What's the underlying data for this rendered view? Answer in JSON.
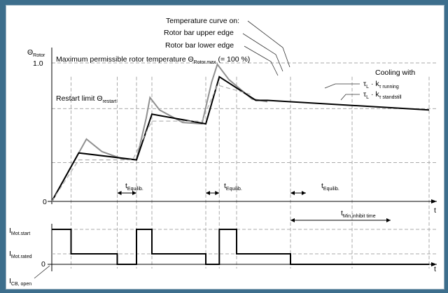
{
  "chart_data": [
    {
      "type": "line",
      "y_axis": {
        "label": "Θ",
        "label_sub": "Rotor",
        "ticks": [
          "1.0",
          "0"
        ],
        "tick_values": [
          1.0,
          0
        ]
      },
      "x_axis": {
        "label": "t"
      },
      "annotations": {
        "curve_title": "Temperature curve on:",
        "upper_edge": "Rotor bar upper edge",
        "lower_edge": "Rotor bar lower edge",
        "max_temp": "Maximum permissible rotor temperature Θ",
        "max_temp_sub": "Rotor.max",
        "max_temp_suffix": " (= 100 %)",
        "restart_limit": "Restart limit Θ",
        "restart_limit_sub": "restart",
        "cooling_with": "Cooling with",
        "tau_running": "τ",
        "tau_running_sub": "L",
        "k_running": " · k",
        "k_running_sub": "τ running",
        "tau_standstill": "τ",
        "tau_standstill_sub": "L",
        "k_standstill": " · k",
        "k_standstill_sub": "τ standstill",
        "t_equilib": "t",
        "t_equilib_sub": "Equilib."
      },
      "reference_levels": {
        "max": 1.0,
        "restart": 0.67
      },
      "series": [
        {
          "name": "Rotor bar upper edge",
          "color": "#909090",
          "points": [
            [
              0,
              0
            ],
            [
              0.09,
              0.45
            ],
            [
              0.13,
              0.36
            ],
            [
              0.18,
              0.31
            ],
            [
              0.22,
              0.3
            ],
            [
              0.245,
              0.6
            ],
            [
              0.255,
              0.75
            ],
            [
              0.28,
              0.66
            ],
            [
              0.34,
              0.57
            ],
            [
              0.39,
              0.56
            ],
            [
              0.415,
              0.86
            ],
            [
              0.43,
              0.99
            ],
            [
              0.46,
              0.88
            ],
            [
              0.52,
              0.74
            ],
            [
              0.56,
              0.72
            ]
          ]
        },
        {
          "name": "Rotor bar lower edge",
          "color": "#000000",
          "points": [
            [
              0,
              0
            ],
            [
              0.07,
              0.35
            ],
            [
              0.22,
              0.3
            ],
            [
              0.26,
              0.63
            ],
            [
              0.4,
              0.56
            ],
            [
              0.435,
              0.9
            ],
            [
              0.53,
              0.73
            ],
            [
              0.56,
              0.73
            ],
            [
              0.98,
              0.66
            ]
          ]
        },
        {
          "name": "dashed",
          "color": "#b0b0b0",
          "points": [
            [
              0,
              0
            ],
            [
              0.07,
              0.3
            ],
            [
              0.21,
              0.3
            ],
            [
              0.26,
              0.58
            ],
            [
              0.39,
              0.58
            ],
            [
              0.43,
              0.84
            ],
            [
              0.52,
              0.77
            ]
          ]
        }
      ]
    },
    {
      "type": "line",
      "y_axis": {
        "ticks": [
          "I",
          "I",
          "0"
        ],
        "tick_subs": [
          "Mot.start",
          "Mot.rated",
          ""
        ],
        "tick_values": [
          1,
          0.3,
          0
        ]
      },
      "x_axis": {
        "label": "t"
      },
      "annotations": {
        "cb_open": "I",
        "cb_open_sub": "CB, open",
        "t_min": "t",
        "t_min_sub": "Min.inhibit time"
      },
      "series": [
        {
          "name": "current",
          "color": "#000000",
          "points": [
            [
              0,
              1
            ],
            [
              0.05,
              1
            ],
            [
              0.05,
              0.3
            ],
            [
              0.17,
              0.3
            ],
            [
              0.17,
              0
            ],
            [
              0.22,
              0
            ],
            [
              0.22,
              1
            ],
            [
              0.26,
              1
            ],
            [
              0.26,
              0.3
            ],
            [
              0.4,
              0.3
            ],
            [
              0.4,
              0
            ],
            [
              0.435,
              0
            ],
            [
              0.435,
              1
            ],
            [
              0.48,
              1
            ],
            [
              0.48,
              0.3
            ],
            [
              0.62,
              0.3
            ],
            [
              0.62,
              0
            ],
            [
              0.98,
              0
            ]
          ]
        }
      ]
    }
  ]
}
